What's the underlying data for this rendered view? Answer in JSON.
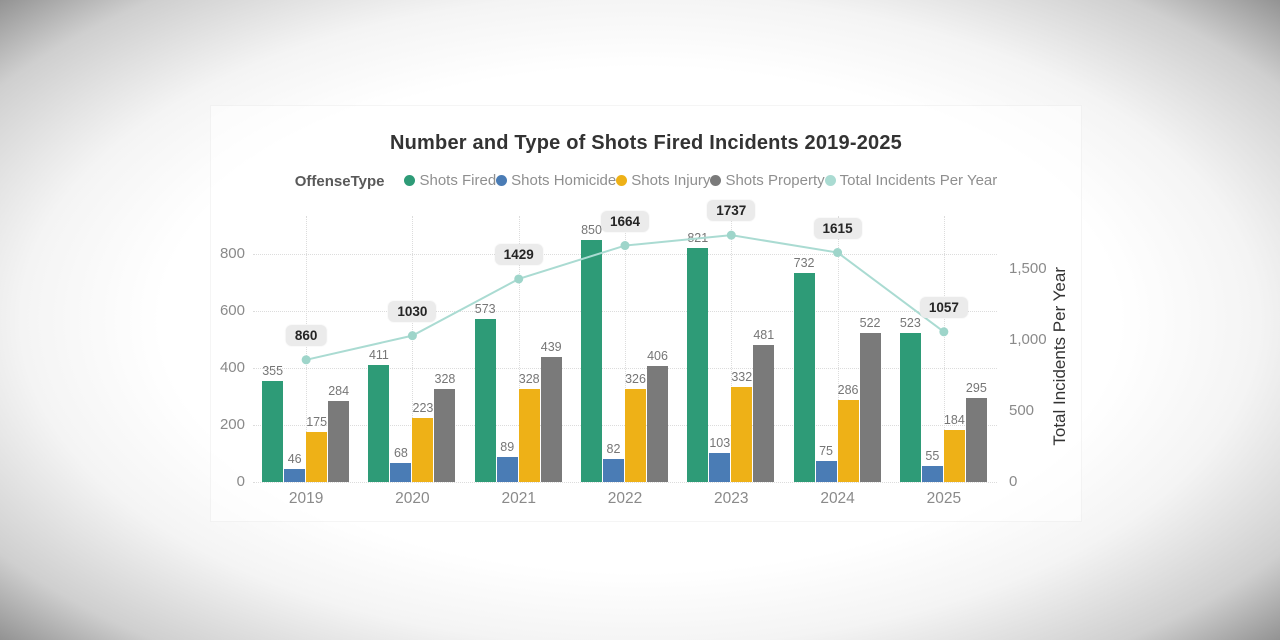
{
  "chart_data": {
    "type": "combo-bar-line",
    "title": "Number and Type of Shots Fired Incidents 2019-2025",
    "legend_title": "OffenseType",
    "legend_position": "top",
    "grid": {
      "horizontal": "dotted",
      "vertical": "dotted"
    },
    "categories": [
      "2019",
      "2020",
      "2021",
      "2022",
      "2023",
      "2024",
      "2025"
    ],
    "series": [
      {
        "name": "Shots Fired",
        "color": "#2e9b77",
        "values": [
          355,
          411,
          573,
          850,
          821,
          732,
          523
        ]
      },
      {
        "name": "Shots Homicide",
        "color": "#4a7cb5",
        "values": [
          46,
          68,
          89,
          82,
          103,
          75,
          55
        ]
      },
      {
        "name": "Shots Injury",
        "color": "#eeb117",
        "values": [
          175,
          223,
          328,
          326,
          332,
          286,
          184
        ]
      },
      {
        "name": "Shots Property",
        "color": "#7a7a7a",
        "values": [
          284,
          328,
          439,
          406,
          481,
          522,
          295
        ]
      }
    ],
    "line_series": {
      "name": "Total Incidents Per Year",
      "color": "#aadbd2",
      "marker_color": "#9ed5ca",
      "values": [
        860,
        1030,
        1429,
        1664,
        1737,
        1615,
        1057
      ]
    },
    "left_axis": {
      "ticks": [
        0,
        200,
        400,
        600,
        800
      ],
      "range": [
        0,
        933
      ]
    },
    "right_axis": {
      "title": "Total Incidents Per Year",
      "tick_values": [
        0,
        500,
        1000,
        1500
      ],
      "tick_labels": [
        "0",
        "500",
        "1,000",
        "1,500"
      ],
      "range": [
        0,
        1872
      ]
    },
    "colors": {
      "grid": "#dcdcdc",
      "bar_label": "#767676",
      "axis_label": "#8a8a8a",
      "total_box_bg": "#ebebeb",
      "total_box_text": "#252525",
      "title": "#333333",
      "legend_title": "#595959",
      "legend_text": "#8f8f8f"
    }
  }
}
